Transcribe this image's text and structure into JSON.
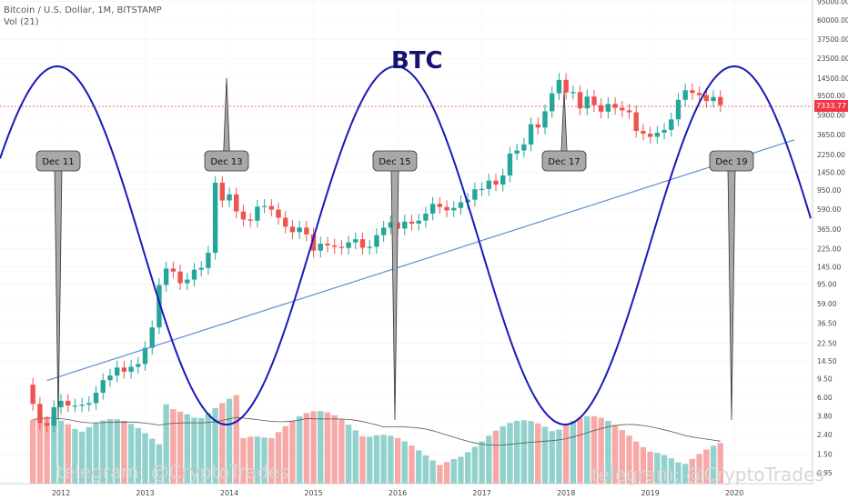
{
  "header": {
    "symbol_line": "Bitcoin / U.S. Dollar, 1M, BITSTAMP",
    "volume_line": "Vol (21)"
  },
  "title": "BTC",
  "current_price": "7333.77",
  "watermark_left": "telegram: @CryptoTrades",
  "watermark_right": "telegram: @CryptoTrades",
  "colors": {
    "up": "#26a69a",
    "down": "#ef5350",
    "cycle": "#1a1ab8",
    "trend": "#5b8fd0",
    "callout": "#a8a8a8"
  },
  "chart_data": {
    "type": "line",
    "yscale": "log",
    "x_ticks": [
      "2012",
      "2013",
      "2014",
      "2015",
      "2016",
      "2017",
      "2018",
      "2019",
      "2020"
    ],
    "y_ticks": [
      "95000.00",
      "60000.00",
      "37500.00",
      "23500.00",
      "14500.00",
      "9500.00",
      "5900.00",
      "3650.00",
      "2250.00",
      "1450.00",
      "950.00",
      "590.00",
      "365.00",
      "225.00",
      "145.00",
      "95.00",
      "59.00",
      "36.50",
      "22.50",
      "14.50",
      "9.50",
      "6.00",
      "3.80",
      "2.40",
      "1.50",
      "0.95"
    ],
    "callouts": [
      "Dec 11",
      "Dec 13",
      "Dec 15",
      "Dec 17",
      "Dec 19"
    ],
    "series": [
      {
        "name": "Price (monthly close, approx.)",
        "x": [
          "2011-09",
          "2011-10",
          "2011-11",
          "2011-12",
          "2012-01",
          "2012-02",
          "2012-03",
          "2012-04",
          "2012-05",
          "2012-06",
          "2012-07",
          "2012-08",
          "2012-09",
          "2012-10",
          "2012-11",
          "2012-12",
          "2013-01",
          "2013-02",
          "2013-03",
          "2013-04",
          "2013-05",
          "2013-06",
          "2013-07",
          "2013-08",
          "2013-09",
          "2013-10",
          "2013-11",
          "2013-12",
          "2014-01",
          "2014-02",
          "2014-03",
          "2014-04",
          "2014-05",
          "2014-06",
          "2014-07",
          "2014-08",
          "2014-09",
          "2014-10",
          "2014-11",
          "2014-12",
          "2015-01",
          "2015-02",
          "2015-03",
          "2015-04",
          "2015-05",
          "2015-06",
          "2015-07",
          "2015-08",
          "2015-09",
          "2015-10",
          "2015-11",
          "2015-12",
          "2016-01",
          "2016-02",
          "2016-03",
          "2016-04",
          "2016-05",
          "2016-06",
          "2016-07",
          "2016-08",
          "2016-09",
          "2016-10",
          "2016-11",
          "2016-12",
          "2017-01",
          "2017-02",
          "2017-03",
          "2017-04",
          "2017-05",
          "2017-06",
          "2017-07",
          "2017-08",
          "2017-09",
          "2017-10",
          "2017-11",
          "2017-12",
          "2018-01",
          "2018-02",
          "2018-03",
          "2018-04",
          "2018-05",
          "2018-06",
          "2018-07",
          "2018-08",
          "2018-09",
          "2018-10",
          "2018-11",
          "2018-12",
          "2019-01",
          "2019-02",
          "2019-03",
          "2019-04",
          "2019-05",
          "2019-06",
          "2019-07",
          "2019-08",
          "2019-09",
          "2019-10",
          "2019-11"
        ],
        "values": [
          5.1,
          3.2,
          3.0,
          4.7,
          5.5,
          4.9,
          4.9,
          5.0,
          5.2,
          6.7,
          9.1,
          10.2,
          12.4,
          11.2,
          12.6,
          13.5,
          20,
          33,
          93,
          139,
          129,
          97,
          106,
          135,
          141,
          204,
          1130,
          732,
          850,
          560,
          460,
          447,
          630,
          640,
          585,
          480,
          386,
          338,
          378,
          320,
          215,
          255,
          244,
          236,
          230,
          263,
          284,
          231,
          236,
          314,
          377,
          430,
          369,
          437,
          416,
          448,
          531,
          674,
          624,
          575,
          609,
          701,
          746,
          963,
          970,
          1190,
          1080,
          1350,
          2300,
          2480,
          2875,
          4700,
          4340,
          6460,
          10000,
          13900,
          10220,
          10330,
          6930,
          9240,
          7500,
          6400,
          7730,
          7030,
          6610,
          6300,
          4000,
          3740,
          3460,
          3830,
          4100,
          5300,
          8550,
          10800,
          10100,
          9600,
          8300,
          9150,
          7500
        ]
      },
      {
        "name": "Trend line",
        "x": [
          "2011-11",
          "2019-12"
        ],
        "values": [
          9,
          1900
        ]
      }
    ],
    "ylim": [
      0.8,
      150000
    ]
  }
}
